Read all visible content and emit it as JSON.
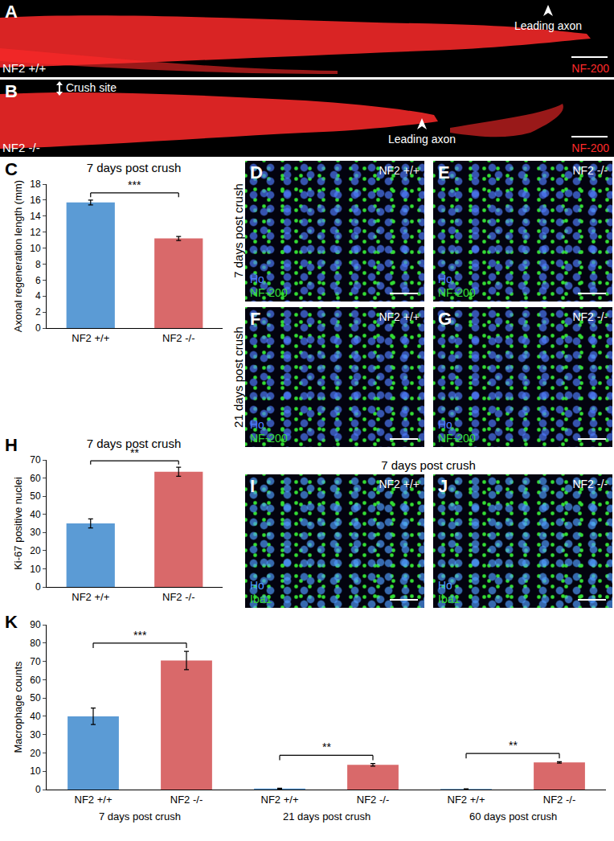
{
  "image_panels": [
    {
      "letter": "A",
      "genotype": "NF2 +/+",
      "stains": [
        {
          "text": "NF-200",
          "color": "#ff2a2a"
        }
      ],
      "notes": [
        "Leading axon"
      ]
    },
    {
      "letter": "B",
      "genotype": "NF2 -/-",
      "stains": [
        {
          "text": "NF-200",
          "color": "#ff2a2a"
        }
      ],
      "notes": [
        "Crush site",
        "Leading axon"
      ]
    },
    {
      "letter": "D",
      "genotype": "NF2 +/+",
      "stains": [
        {
          "text": "Ho",
          "color": "#4f7cff"
        },
        {
          "text": "NF-200",
          "color": "#33dd33"
        }
      ]
    },
    {
      "letter": "E",
      "genotype": "NF2 -/-",
      "stains": [
        {
          "text": "Ho",
          "color": "#4f7cff"
        },
        {
          "text": "NF-200",
          "color": "#33dd33"
        }
      ]
    },
    {
      "letter": "F",
      "genotype": "NF2 +/+",
      "stains": [
        {
          "text": "Ho",
          "color": "#4f7cff"
        },
        {
          "text": "NF-200",
          "color": "#33dd33"
        }
      ]
    },
    {
      "letter": "G",
      "genotype": "NF2 -/-",
      "stains": [
        {
          "text": "Ho",
          "color": "#4f7cff"
        },
        {
          "text": "NF-200",
          "color": "#33dd33"
        }
      ]
    },
    {
      "letter": "I",
      "genotype": "NF2 +/+",
      "stains": [
        {
          "text": "Ho",
          "color": "#4f9cff"
        },
        {
          "text": "Iba1",
          "color": "#33dd33"
        }
      ]
    },
    {
      "letter": "J",
      "genotype": "NF2 -/-",
      "stains": [
        {
          "text": "Ho",
          "color": "#4f9cff"
        },
        {
          "text": "Iba1",
          "color": "#33dd33"
        }
      ]
    }
  ],
  "row_labels": [
    "7 days post crush",
    "21 days post crush",
    "7 days post crush"
  ],
  "chart_data": [
    {
      "type": "bar",
      "panel": "C",
      "title": "7 days post crush",
      "y_label": "Axonal regeneration length (mm)",
      "categories": [
        "NF2 +/+",
        "NF2 -/-"
      ],
      "values": [
        15.7,
        11.2
      ],
      "errors": [
        0.3,
        0.25
      ],
      "colors": [
        "#5b9bd5",
        "#d9696a"
      ],
      "ylim": [
        0,
        18
      ],
      "yticks": [
        0,
        2,
        4,
        6,
        8,
        10,
        12,
        14,
        16,
        18
      ],
      "grid": false,
      "significance": [
        {
          "from": 0,
          "to": 1,
          "label": "***"
        }
      ]
    },
    {
      "type": "bar",
      "panel": "H",
      "title": "7 days post crush",
      "y_label": "Ki-67 positive nuclei",
      "categories": [
        "NF2 +/+",
        "NF2 -/-"
      ],
      "values": [
        35,
        63.5
      ],
      "errors": [
        2.5,
        2.5
      ],
      "colors": [
        "#5b9bd5",
        "#d9696a"
      ],
      "ylim": [
        0,
        70
      ],
      "yticks": [
        0,
        10,
        20,
        30,
        40,
        50,
        60,
        70
      ],
      "grid": false,
      "significance": [
        {
          "from": 0,
          "to": 1,
          "label": "**"
        }
      ]
    },
    {
      "type": "bar",
      "panel": "K",
      "y_label": "Macrophage counts",
      "categories": [
        "NF2 +/+",
        "NF2 -/-",
        "NF2 +/+",
        "NF2 -/-",
        "NF2 +/+",
        "NF2 -/-"
      ],
      "groups": [
        "7 days post crush",
        "21 days post crush",
        "60 days post crush"
      ],
      "values": [
        40,
        70.5,
        0.5,
        13.5,
        0.3,
        14.8
      ],
      "errors": [
        4.5,
        5,
        0.2,
        0.7,
        0.1,
        0.4
      ],
      "colors": [
        "#5b9bd5",
        "#d9696a",
        "#5b9bd5",
        "#d9696a",
        "#5b9bd5",
        "#d9696a"
      ],
      "ylim": [
        0,
        90
      ],
      "yticks": [
        0,
        10,
        20,
        30,
        40,
        50,
        60,
        70,
        80,
        90
      ],
      "grid": false,
      "significance": [
        {
          "from": 0,
          "to": 1,
          "label": "***"
        },
        {
          "from": 2,
          "to": 3,
          "label": "**"
        },
        {
          "from": 4,
          "to": 5,
          "label": "**"
        }
      ]
    }
  ]
}
